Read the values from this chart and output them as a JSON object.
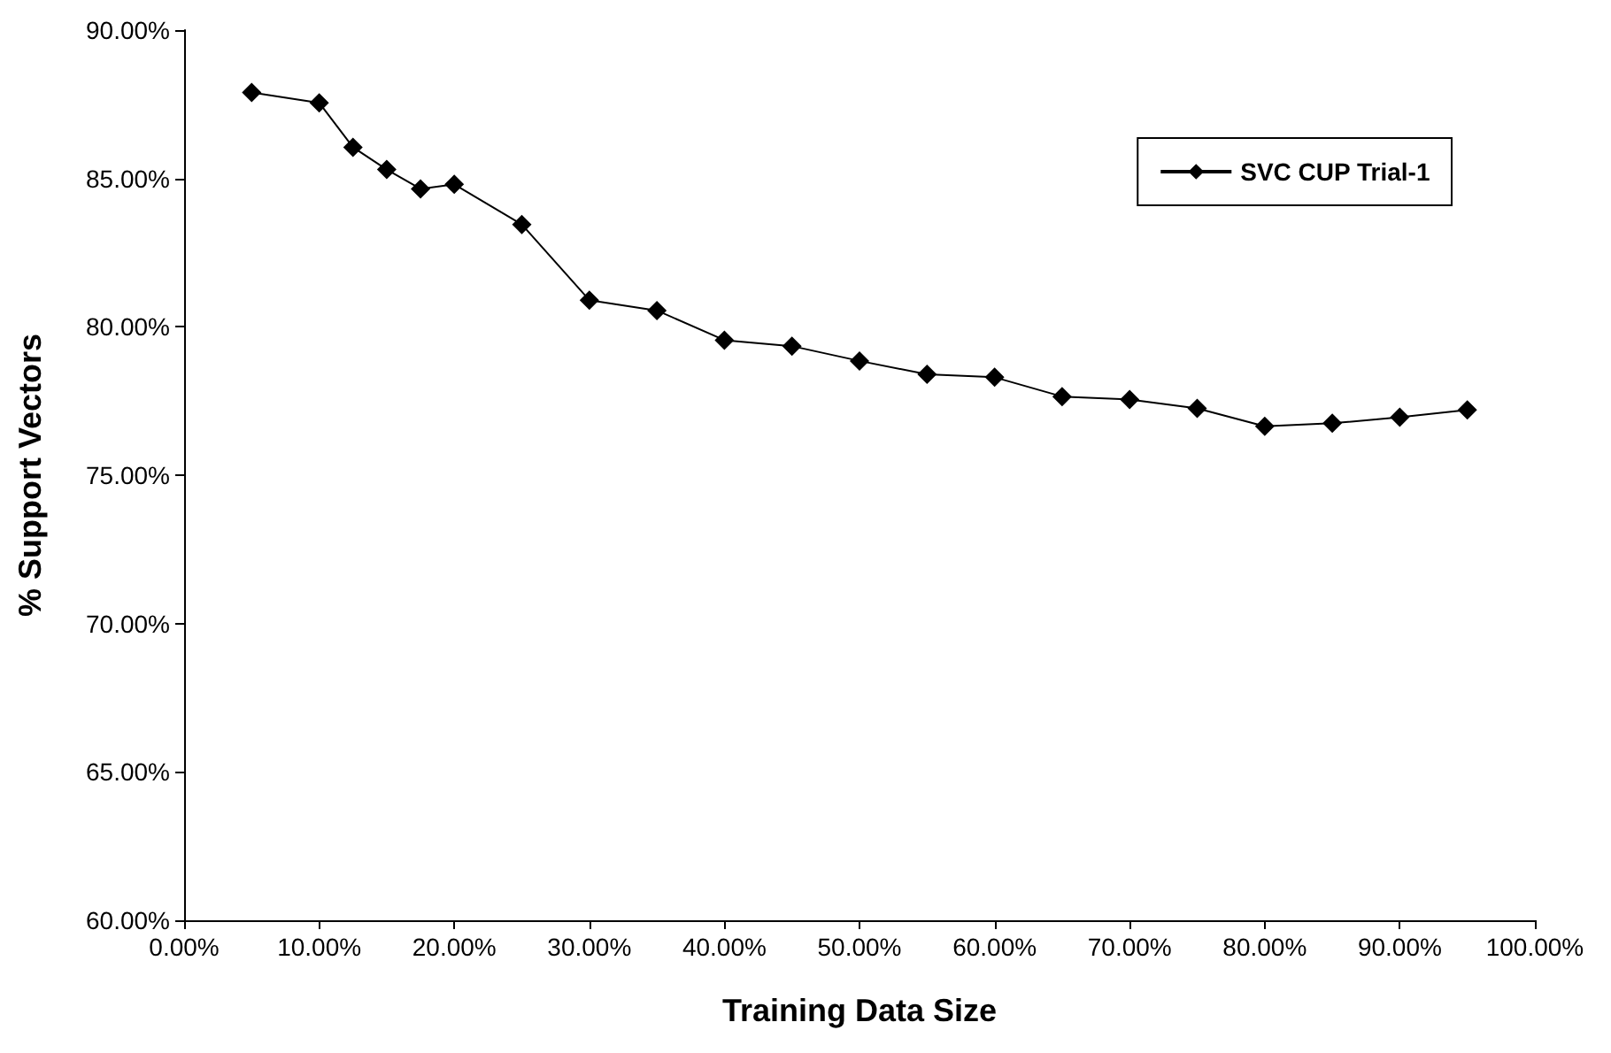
{
  "chart_data": {
    "type": "line",
    "xlabel": "Training Data Size",
    "ylabel": "% Support Vectors",
    "x": [
      5,
      10,
      12.5,
      15,
      17.5,
      20,
      25,
      30,
      35,
      40,
      45,
      50,
      55,
      60,
      65,
      70,
      75,
      80,
      85,
      90,
      95
    ],
    "series": [
      {
        "name": "SVC CUP Trial-1",
        "color": "#000000",
        "values": [
          87.9,
          87.55,
          86.05,
          85.3,
          84.65,
          84.8,
          83.45,
          80.9,
          80.55,
          79.55,
          79.35,
          78.85,
          78.4,
          78.3,
          77.65,
          77.55,
          77.25,
          76.65,
          76.75,
          76.95,
          77.2
        ]
      }
    ],
    "xlim": [
      0,
      100
    ],
    "xticks": [
      {
        "value": 0,
        "label": "0.00%"
      },
      {
        "value": 10,
        "label": "10.00%"
      },
      {
        "value": 20,
        "label": "20.00%"
      },
      {
        "value": 30,
        "label": "30.00%"
      },
      {
        "value": 40,
        "label": "40.00%"
      },
      {
        "value": 50,
        "label": "50.00%"
      },
      {
        "value": 60,
        "label": "60.00%"
      },
      {
        "value": 70,
        "label": "70.00%"
      },
      {
        "value": 80,
        "label": "80.00%"
      },
      {
        "value": 90,
        "label": "90.00%"
      },
      {
        "value": 100,
        "label": "100.00%"
      }
    ],
    "ylim": [
      60,
      90
    ],
    "yticks": [
      {
        "value": 60,
        "label": "60.00%"
      },
      {
        "value": 65,
        "label": "65.00%"
      },
      {
        "value": 70,
        "label": "70.00%"
      },
      {
        "value": 75,
        "label": "75.00%"
      },
      {
        "value": 80,
        "label": "80.00%"
      },
      {
        "value": 85,
        "label": "85.00%"
      },
      {
        "value": 90,
        "label": "90.00%"
      }
    ],
    "grid": false,
    "legend": "top right",
    "marker": "diamond",
    "line_style": "solid"
  }
}
